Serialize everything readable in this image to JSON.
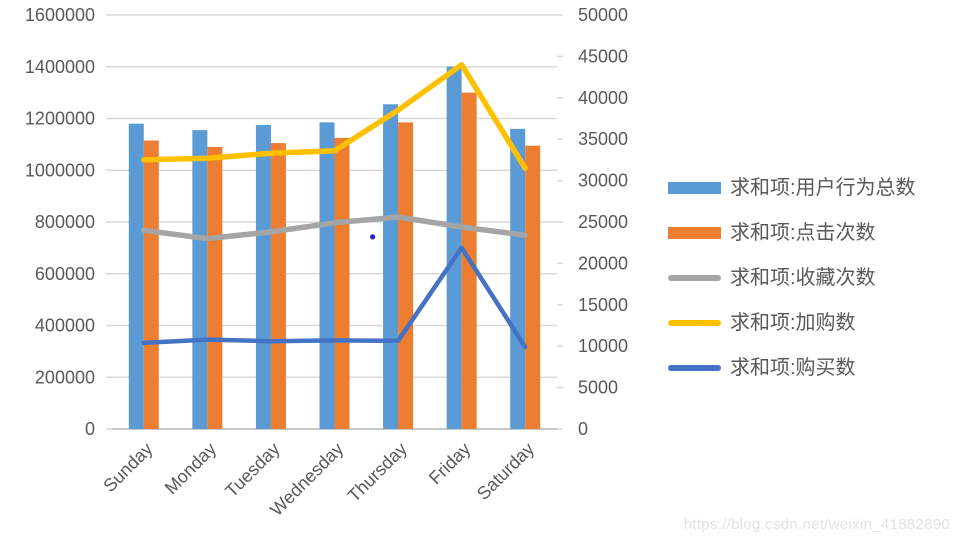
{
  "watermark": "https://blog.csdn.net/weixin_41882890",
  "chart_data": {
    "type": "combo-bar-line",
    "title": "",
    "xlabel": "",
    "ylabel": "",
    "legend_position": "right",
    "grid": "horizontal-left-axis",
    "categories": [
      "Sunday",
      "Monday",
      "Tuesday",
      "Wednesday",
      "Thursday",
      "Friday",
      "Saturday"
    ],
    "bar_series": [
      {
        "name": "求和项:用户行为总数",
        "color": "#5B9BD5",
        "axis": "left",
        "values": [
          1180000,
          1155000,
          1175000,
          1185000,
          1255000,
          1400000,
          1160000
        ]
      },
      {
        "name": "求和项:点击次数",
        "color": "#ED7D31",
        "axis": "left",
        "values": [
          1115000,
          1090000,
          1105000,
          1125000,
          1185000,
          1300000,
          1095000
        ]
      }
    ],
    "line_series": [
      {
        "name": "求和项:收藏次数",
        "color": "#A5A5A5",
        "axis": "right",
        "stroke_width": 5.5,
        "values": [
          24000,
          23000,
          23800,
          24900,
          25600,
          24400,
          23400
        ]
      },
      {
        "name": "求和项:加购数",
        "color": "#FFC000",
        "axis": "right",
        "stroke_width": 5.5,
        "values": [
          32500,
          32700,
          33300,
          33600,
          38500,
          44000,
          31500
        ]
      },
      {
        "name": "求和项:购买数",
        "color": "#4472C4",
        "axis": "right",
        "stroke_width": 4.5,
        "values": [
          10400,
          10800,
          10600,
          10700,
          10650,
          21900,
          9900
        ]
      }
    ],
    "left_axis": {
      "min": 0,
      "max": 1600000,
      "step": 200000,
      "tick_labels": [
        "0",
        "200000",
        "400000",
        "600000",
        "800000",
        "1000000",
        "1200000",
        "1400000",
        "1600000"
      ]
    },
    "right_axis": {
      "min": 0,
      "max": 50000,
      "step": 5000,
      "tick_labels": [
        "0",
        "5000",
        "10000",
        "15000",
        "20000",
        "25000",
        "30000",
        "35000",
        "40000",
        "45000",
        "50000"
      ]
    },
    "stray_marker": {
      "day_frac": 3.6,
      "value": 23200,
      "axis": "right",
      "color": "#2323CC"
    },
    "colors": {
      "gridline": "#D9D9D9",
      "axis_line": "#C9C9C9",
      "tick_text": "#595959"
    }
  }
}
